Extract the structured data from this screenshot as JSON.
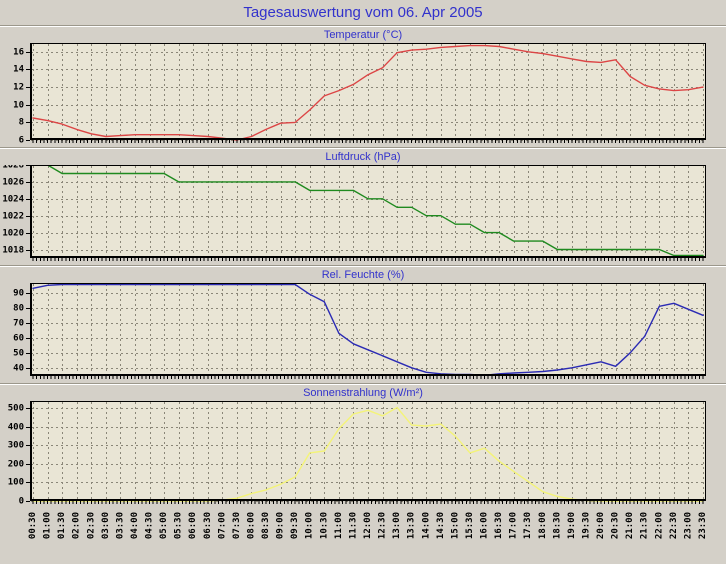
{
  "page": {
    "title": "Tagesauswertung vom 06. Apr 2005"
  },
  "colors": {
    "background": "#d4d0c8",
    "plot_background": "#e9e5d5",
    "grid": "#8a8678",
    "accent_blue": "#3232cc",
    "axis": "#000000"
  },
  "x_labels": [
    "00:30",
    "01:00",
    "01:30",
    "02:00",
    "02:30",
    "03:00",
    "03:30",
    "04:00",
    "04:30",
    "05:00",
    "05:30",
    "06:00",
    "06:30",
    "07:00",
    "07:30",
    "08:00",
    "08:30",
    "09:00",
    "09:30",
    "10:00",
    "10:30",
    "11:00",
    "11:30",
    "12:00",
    "12:30",
    "13:00",
    "13:30",
    "14:00",
    "14:30",
    "15:00",
    "15:30",
    "16:00",
    "16:30",
    "17:00",
    "17:30",
    "18:00",
    "18:30",
    "19:00",
    "19:30",
    "20:00",
    "20:30",
    "21:00",
    "21:30",
    "22:00",
    "22:30",
    "23:00",
    "23:30"
  ],
  "chart_data": [
    {
      "id": "temperature",
      "type": "line",
      "title": "Temperatur (°C)",
      "line_color": "#dc4545",
      "y_ticks": [
        16,
        14,
        12,
        10,
        8,
        6
      ],
      "ylim": [
        6,
        17
      ],
      "grid": true,
      "legend": "none",
      "values": [
        8.5,
        8.2,
        7.8,
        7.2,
        6.7,
        6.4,
        6.5,
        6.6,
        6.6,
        6.6,
        6.6,
        6.5,
        6.4,
        6.2,
        6.0,
        6.4,
        7.2,
        7.9,
        8.0,
        9.4,
        11.0,
        11.6,
        12.3,
        13.4,
        14.2,
        15.9,
        16.2,
        16.3,
        16.5,
        16.6,
        16.7,
        16.7,
        16.6,
        16.3,
        16.0,
        15.8,
        15.5,
        15.2,
        14.9,
        14.8,
        15.1,
        13.2,
        12.2,
        11.8,
        11.6,
        11.7,
        12.0
      ]
    },
    {
      "id": "pressure",
      "type": "line",
      "title": "Luftdruck (hPa)",
      "line_color": "#1f8a1f",
      "y_ticks": [
        1028,
        1026,
        1024,
        1022,
        1020,
        1018
      ],
      "ylim": [
        1017,
        1028
      ],
      "grid": true,
      "legend": "none",
      "values": [
        1028,
        1028,
        1027,
        1027,
        1027,
        1027,
        1027,
        1027,
        1027,
        1027,
        1026,
        1026,
        1026,
        1026,
        1026,
        1026,
        1026,
        1026,
        1026,
        1025,
        1025,
        1025,
        1025,
        1024,
        1024,
        1023,
        1023,
        1022,
        1022,
        1021,
        1021,
        1020,
        1020,
        1019,
        1019,
        1019,
        1018,
        1018,
        1018,
        1018,
        1018,
        1018,
        1018,
        1018,
        1017.3,
        1017.3,
        1017.3
      ]
    },
    {
      "id": "humidity",
      "type": "line",
      "title": "Rel. Feuchte (%)",
      "line_color": "#2b2bb4",
      "y_ticks": [
        90,
        80,
        70,
        60,
        50,
        40
      ],
      "ylim": [
        34.5,
        96.5
      ],
      "grid": true,
      "legend": "none",
      "values": [
        93,
        95,
        95.5,
        95.5,
        95.5,
        95.5,
        95.5,
        95.5,
        95.5,
        95.5,
        95.5,
        95.5,
        95.5,
        95.5,
        95.5,
        95.5,
        95.5,
        95.5,
        95.5,
        89,
        84,
        63,
        56,
        52,
        48,
        44,
        40,
        37,
        36,
        35.5,
        35.5,
        35,
        36,
        36.5,
        37,
        37.5,
        38.5,
        40,
        42,
        44,
        41,
        50,
        61,
        81,
        83,
        79,
        75
      ]
    },
    {
      "id": "radiation",
      "type": "line",
      "title": "Sonnenstrahlung (W/m²)",
      "line_color": "#f4f478",
      "y_ticks": [
        500,
        400,
        300,
        200,
        100,
        0
      ],
      "ylim": [
        0,
        540
      ],
      "grid": true,
      "legend": "none",
      "values": [
        0,
        0,
        0,
        0,
        0,
        0,
        0,
        0,
        0,
        0,
        0,
        0,
        0,
        5,
        15,
        40,
        60,
        90,
        130,
        260,
        270,
        390,
        470,
        490,
        460,
        505,
        410,
        405,
        415,
        350,
        260,
        285,
        215,
        160,
        105,
        50,
        25,
        10,
        2,
        0,
        0,
        0,
        0,
        0,
        0,
        0,
        0
      ]
    }
  ]
}
